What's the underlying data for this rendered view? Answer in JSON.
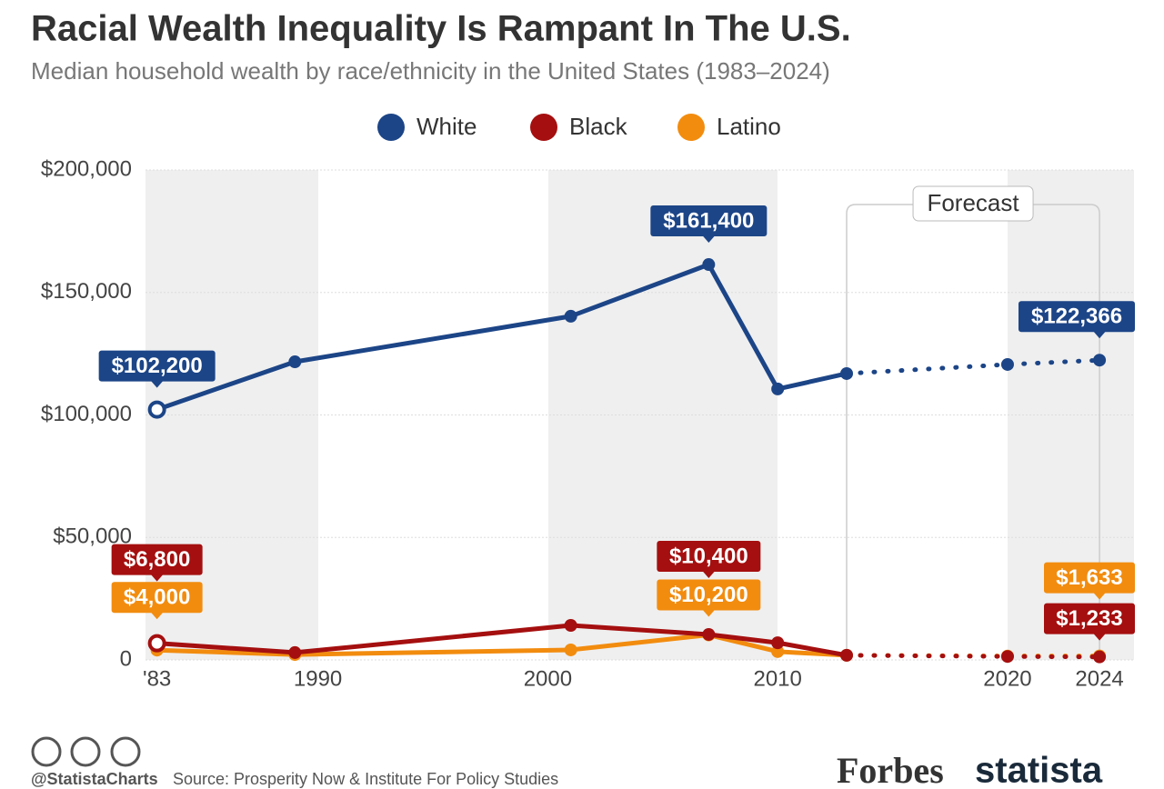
{
  "chart_data": {
    "type": "line",
    "title": "Racial Wealth Inequality Is Rampant In The U.S.",
    "subtitle": "Median household wealth by race/ethnicity in the United States (1983–2024)",
    "annotation": "Forecast",
    "dashed_from_x": 2013,
    "x": [
      1983,
      1989,
      2001,
      2007,
      2010,
      2013,
      2020,
      2024
    ],
    "xlim": [
      1982.5,
      2025.5
    ],
    "xticks": [
      {
        "value": 1983,
        "label": "'83"
      },
      1990,
      2000,
      2010,
      2020,
      2024
    ],
    "ylim": [
      0,
      200000
    ],
    "yticks": [
      0,
      {
        "value": 50000,
        "label": "$50,000"
      },
      {
        "value": 100000,
        "label": "$100,000"
      },
      {
        "value": 150000,
        "label": "$150,000"
      },
      {
        "value": 200000,
        "label": "$200,000"
      }
    ],
    "grid": true,
    "series": [
      {
        "name": "White",
        "color": "#1c4587",
        "values": [
          102200,
          121700,
          140300,
          161400,
          110600,
          116900,
          120600,
          122366
        ],
        "value_labels": [
          "$102,200",
          null,
          null,
          "$161,400",
          null,
          null,
          null,
          "$122,366"
        ]
      },
      {
        "name": "Black",
        "color": "#a50f0f",
        "values": [
          6800,
          3000,
          14100,
          10400,
          7000,
          1900,
          1400,
          1233
        ],
        "value_labels": [
          "$6,800",
          null,
          null,
          "$10,400",
          null,
          null,
          null,
          "$1,233"
        ]
      },
      {
        "name": "Latino",
        "color": "#f28c0f",
        "values": [
          4000,
          2200,
          4100,
          10200,
          3400,
          1900,
          1600,
          1633
        ],
        "value_labels": [
          "$4,000",
          null,
          null,
          "$10,200",
          null,
          null,
          null,
          "$1,633"
        ]
      }
    ]
  },
  "footer": {
    "handle": "@StatistaCharts",
    "source": "Source: Prosperity Now & Institute For Policy Studies",
    "brand1": "Forbes",
    "brand2": "statista"
  }
}
